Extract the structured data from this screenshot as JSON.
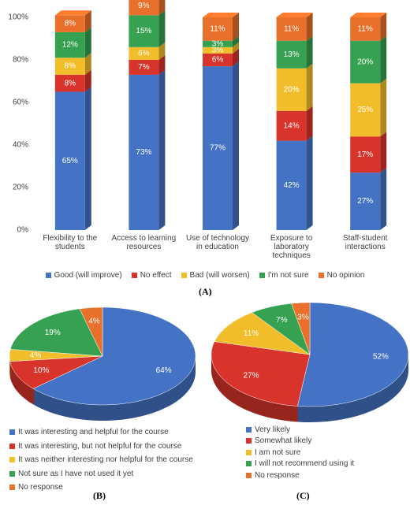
{
  "chart_data": [
    {
      "type": "bar",
      "stacked": true,
      "caption": "(A)",
      "categories": [
        "Flexibility to the students",
        "Access to learning resources",
        "Use of technology in education",
        "Exposure to laboratory techniques",
        "Staff-student interactions"
      ],
      "series": [
        {
          "name": "Good (will improve)",
          "color": "#4472c4",
          "values": [
            65,
            73,
            77,
            42,
            27
          ],
          "value_labels": [
            "65%",
            "73%",
            "77%",
            "42%",
            "27%"
          ]
        },
        {
          "name": "No effect",
          "color": "#d9342b",
          "values": [
            8,
            7,
            6,
            14,
            17
          ],
          "value_labels": [
            "8%",
            "7%",
            "6%",
            "14%",
            "17%"
          ]
        },
        {
          "name": "Bad (will worsen)",
          "color": "#f2bd2a",
          "values": [
            8,
            6,
            3,
            20,
            25
          ],
          "value_labels": [
            "8%",
            "6%",
            "3%",
            "20%",
            "25%"
          ]
        },
        {
          "name": "I'm not sure",
          "color": "#36a150",
          "values": [
            12,
            15,
            3,
            13,
            20
          ],
          "value_labels": [
            "12%",
            "15%",
            "3%",
            "13%",
            "20%"
          ]
        },
        {
          "name": "No opinion",
          "color": "#e8702a",
          "values": [
            8,
            9,
            11,
            11,
            11
          ],
          "value_labels": [
            "8%",
            "9%",
            "11%",
            "11%",
            "11%"
          ]
        }
      ],
      "ylim": [
        0,
        100
      ],
      "yticks": [
        {
          "value": 0,
          "label": "0%"
        },
        {
          "value": 20,
          "label": "20%"
        },
        {
          "value": 40,
          "label": "40%"
        },
        {
          "value": 60,
          "label": "60%"
        },
        {
          "value": 80,
          "label": "80%"
        },
        {
          "value": 100,
          "label": "100%"
        }
      ],
      "grid": false,
      "legend": "bottom"
    },
    {
      "type": "pie",
      "caption": "(B)",
      "categories": [
        "It was interesting and helpful for the course",
        "It was interesting, but not helpful for the course",
        "It was neither interesting nor helpful for the course",
        "Not sure as I have not used it yet",
        "No response"
      ],
      "values": [
        64,
        10,
        4,
        19,
        4
      ],
      "value_labels": [
        "64%",
        "10%",
        "4%",
        "19%",
        "4%"
      ],
      "colors": [
        "#4472c4",
        "#d9342b",
        "#f2bd2a",
        "#36a150",
        "#e8702a"
      ],
      "legend": "bottom"
    },
    {
      "type": "pie",
      "caption": "(C)",
      "categories": [
        "Very likely",
        "Somewhat likely",
        "I am not sure",
        "I will not recommend using it",
        "No response"
      ],
      "values": [
        52,
        27,
        11,
        7,
        3
      ],
      "value_labels": [
        "52%",
        "27%",
        "11%",
        "7%",
        "3%"
      ],
      "colors": [
        "#4472c4",
        "#d9342b",
        "#f2bd2a",
        "#36a150",
        "#e8702a"
      ],
      "legend": "bottom"
    }
  ]
}
